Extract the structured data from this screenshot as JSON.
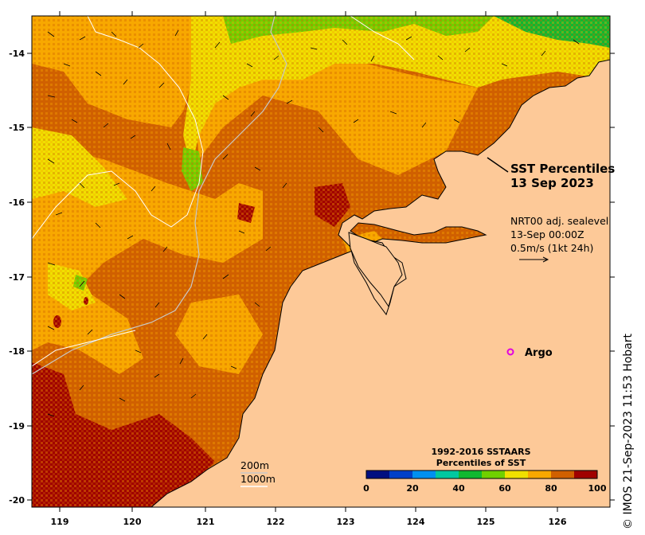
{
  "map": {
    "title_line1": "SST Percentiles",
    "title_line2": "13 Sep 2023",
    "product_line1": "NRT00 adj. sealevel",
    "product_line2": "13-Sep 00:00Z",
    "product_line3": "0.5m/s (1kt 24h)",
    "argo_label": "Argo",
    "contour_label_1": "200m",
    "contour_label_2": "1000m",
    "credit": "© IMOS 21-Sep-2023 11:53 Hobart",
    "lon_ticks": [
      "119",
      "120",
      "121",
      "122",
      "123",
      "124",
      "125",
      "126"
    ],
    "lat_ticks": [
      "-14",
      "-15",
      "-16",
      "-17",
      "-18",
      "-19",
      "-20"
    ],
    "land_color": "#fdc998",
    "argo_color": "#e000e0"
  },
  "colorbar": {
    "title_line1": "1992-2016 SSTAARS",
    "title_line2": "Percentiles of SST",
    "tick_labels": [
      "0",
      "20",
      "40",
      "60",
      "80",
      "100"
    ],
    "colors": [
      "#000f80",
      "#0040c8",
      "#0090f0",
      "#00c8a0",
      "#10b830",
      "#70d000",
      "#f0e000",
      "#f8a800",
      "#d06000",
      "#a00000"
    ]
  }
}
